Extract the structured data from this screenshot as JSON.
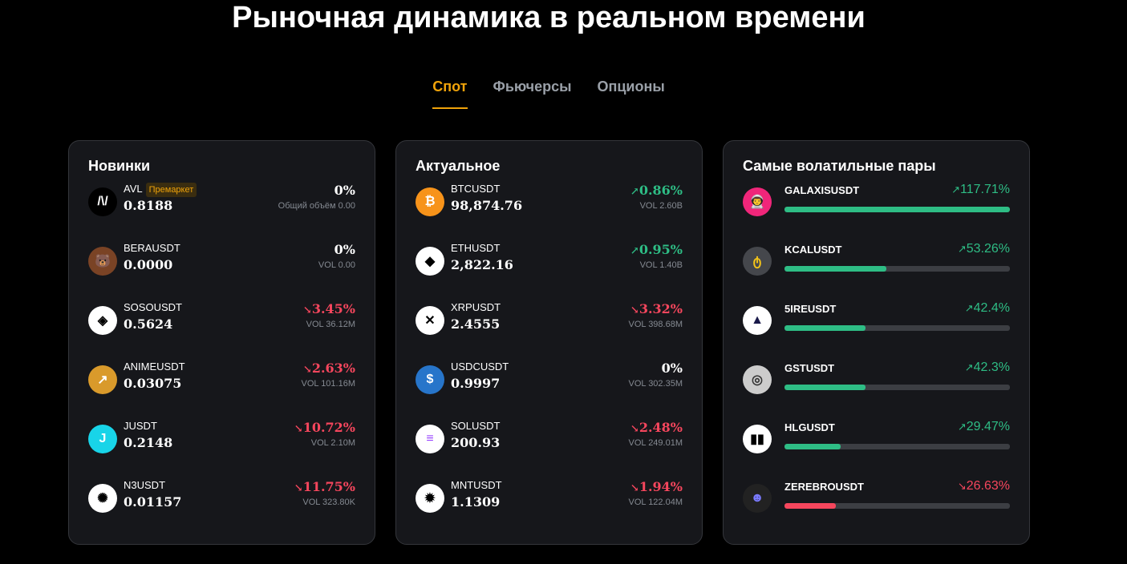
{
  "title": "Рыночная динамика в реальном времени",
  "tabs": [
    {
      "label": "Спот",
      "active": true
    },
    {
      "label": "Фьючерсы"
    },
    {
      "label": "Опционы"
    }
  ],
  "colors": {
    "up": "#2ebd85",
    "down": "#f6465d",
    "accent": "#f0a30a"
  },
  "new": {
    "title": "Новинки",
    "items": [
      {
        "symbol": "AVL",
        "badge": "Премаркет",
        "price": "0.8188",
        "change": "0%",
        "dir": "flat",
        "vol": "Общий объём 0.00",
        "icon": "avl-logo",
        "bg": "#000",
        "fg": "#fff",
        "glyph": "/\\/"
      },
      {
        "symbol": "BERAUSDT",
        "price": "0.0000",
        "change": "0%",
        "dir": "flat",
        "vol": "VOL 0.00",
        "icon": "bera-logo",
        "bg": "#7a4325",
        "fg": "#fff",
        "glyph": "🐻"
      },
      {
        "symbol": "SOSOUSDT",
        "price": "0.5624",
        "change": "3.45%",
        "dir": "dn",
        "vol": "VOL 36.12M",
        "icon": "soso-logo",
        "bg": "#fff",
        "fg": "#000",
        "glyph": "◈"
      },
      {
        "symbol": "ANIMEUSDT",
        "price": "0.03075",
        "change": "2.63%",
        "dir": "dn",
        "vol": "VOL 101.16M",
        "icon": "anime-logo",
        "bg": "#d99a2b",
        "fg": "#fff",
        "glyph": "↗"
      },
      {
        "symbol": "JUSDT",
        "price": "0.2148",
        "change": "10.72%",
        "dir": "dn",
        "vol": "VOL 2.10M",
        "icon": "j-logo",
        "bg": "#18d4e8",
        "fg": "#fff",
        "glyph": "J"
      },
      {
        "symbol": "N3USDT",
        "price": "0.01157",
        "change": "11.75%",
        "dir": "dn",
        "vol": "VOL 323.80K",
        "icon": "n3-logo",
        "bg": "#fff",
        "fg": "#000",
        "glyph": "✺"
      }
    ]
  },
  "hot": {
    "title": "Актуальное",
    "items": [
      {
        "symbol": "BTCUSDT",
        "price": "98,874.76",
        "change": "0.86%",
        "dir": "up",
        "vol": "VOL 2.60B",
        "icon": "bitcoin-logo",
        "bg": "#f7931a",
        "fg": "#fff",
        "glyph": "₿"
      },
      {
        "symbol": "ETHUSDT",
        "price": "2,822.16",
        "change": "0.95%",
        "dir": "up",
        "vol": "VOL 1.40B",
        "icon": "ethereum-logo",
        "bg": "#fff",
        "fg": "#000",
        "glyph": "◆"
      },
      {
        "symbol": "XRPUSDT",
        "price": "2.4555",
        "change": "3.32%",
        "dir": "dn",
        "vol": "VOL 398.68M",
        "icon": "xrp-logo",
        "bg": "#fff",
        "fg": "#000",
        "glyph": "✕"
      },
      {
        "symbol": "USDCUSDT",
        "price": "0.9997",
        "change": "0%",
        "dir": "flat",
        "vol": "VOL 302.35M",
        "icon": "usdc-logo",
        "bg": "#2775ca",
        "fg": "#fff",
        "glyph": "$"
      },
      {
        "symbol": "SOLUSDT",
        "price": "200.93",
        "change": "2.48%",
        "dir": "dn",
        "vol": "VOL 249.01M",
        "icon": "solana-logo",
        "bg": "#fff",
        "fg": "#9945ff",
        "glyph": "≡"
      },
      {
        "symbol": "MNTUSDT",
        "price": "1.1309",
        "change": "1.94%",
        "dir": "dn",
        "vol": "VOL 122.04M",
        "icon": "mantle-logo",
        "bg": "#fff",
        "fg": "#000",
        "glyph": "✹"
      }
    ]
  },
  "volatile": {
    "title": "Самые волатильные пары",
    "items": [
      {
        "symbol": "GALAXISUSDT",
        "change": "117.71%",
        "value": 117.71,
        "dir": "up",
        "icon": "galaxis-logo",
        "bg": "#f0267a",
        "fg": "#fff",
        "glyph": "👨‍🚀"
      },
      {
        "symbol": "KCALUSDT",
        "change": "53.26%",
        "value": 53.26,
        "dir": "up",
        "icon": "kcal-logo",
        "bg": "#45474c",
        "fg": "#f5c518",
        "glyph": "ტ"
      },
      {
        "symbol": "5IREUSDT",
        "change": "42.4%",
        "value": 42.4,
        "dir": "up",
        "icon": "5ire-logo",
        "bg": "#fff",
        "fg": "#1a1a4a",
        "glyph": "▲"
      },
      {
        "symbol": "GSTUSDT",
        "change": "42.3%",
        "value": 42.3,
        "dir": "up",
        "icon": "gst-logo",
        "bg": "#ccc",
        "fg": "#333",
        "glyph": "◎"
      },
      {
        "symbol": "HLGUSDT",
        "change": "29.47%",
        "value": 29.47,
        "dir": "up",
        "icon": "hlg-logo",
        "bg": "#fff",
        "fg": "#000",
        "glyph": "▮▮"
      },
      {
        "symbol": "ZEREBROUSDT",
        "change": "26.63%",
        "value": 26.63,
        "dir": "dn",
        "icon": "zerebro-logo",
        "bg": "#222",
        "fg": "#7a7aff",
        "glyph": "☻"
      }
    ]
  }
}
